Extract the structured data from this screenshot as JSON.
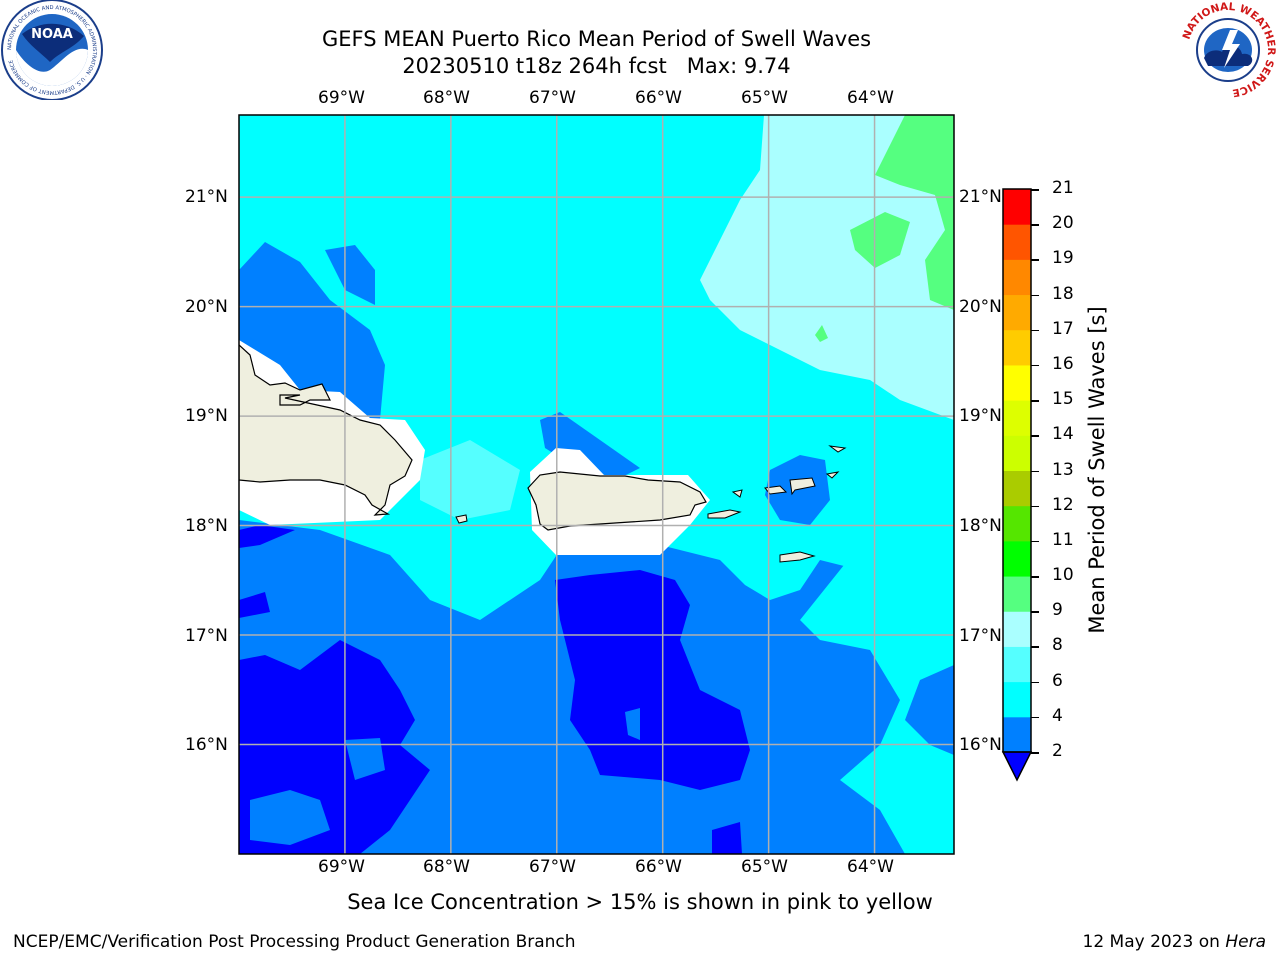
{
  "title": {
    "line1": "GEFS MEAN Puerto Rico Mean Period of Swell Waves",
    "line2": "20230510 t18z 264h fcst   Max: 9.74"
  },
  "map": {
    "lon_ticks_top": [
      "69°W",
      "68°W",
      "67°W",
      "66°W",
      "65°W",
      "64°W"
    ],
    "lon_ticks_bottom": [
      "69°W",
      "68°W",
      "67°W",
      "66°W",
      "65°W",
      "64°W"
    ],
    "lat_ticks_left": [
      "21°N",
      "20°N",
      "19°N",
      "18°N",
      "17°N",
      "16°N"
    ],
    "lat_ticks_right": [
      "21°N",
      "20°N",
      "19°N",
      "18°N",
      "17°N",
      "16°N"
    ],
    "extent": {
      "lon_min": -70.0,
      "lon_max": -63.25,
      "lat_min": 15.0,
      "lat_max": 21.75
    },
    "gridlines": true
  },
  "colorbar": {
    "label": "Mean Period of Swell Waves [s]",
    "ticks": [
      "2",
      "4",
      "6",
      "8",
      "9",
      "10",
      "11",
      "12",
      "13",
      "14",
      "15",
      "16",
      "17",
      "18",
      "19",
      "20",
      "21"
    ],
    "colors": [
      "#0000ff",
      "#0080ff",
      "#00ffff",
      "#55ffff",
      "#aaffff",
      "#55ff80",
      "#00ff00",
      "#55e600",
      "#aacc00",
      "#ccff00",
      "#ddff00",
      "#ffff00",
      "#ffcc00",
      "#ffaa00",
      "#ff8800",
      "#ff5500",
      "#ff0000"
    ],
    "extend": "min"
  },
  "caption": "Sea Ice Concentration > 15% is shown in pink to yellow",
  "footer": {
    "left": "NCEP/EMC/Verification Post Processing Product Generation Branch",
    "right_prefix": "12 May 2023 on ",
    "right_host": "Hera"
  },
  "logos": {
    "noaa_text": "NOAA",
    "noaa_ring": "NATIONAL OCEANIC AND ATMOSPHERIC ADMINISTRATION · U.S. DEPARTMENT OF COMMERCE",
    "nws_ring": "NATIONAL WEATHER SERVICE"
  }
}
